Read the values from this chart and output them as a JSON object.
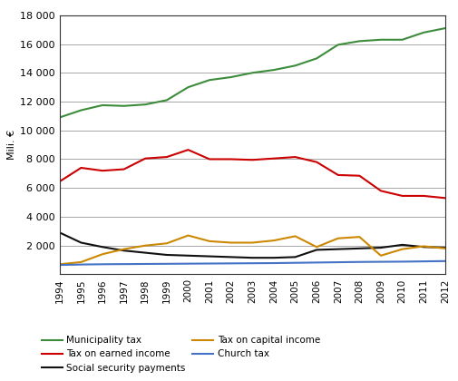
{
  "years": [
    1994,
    1995,
    1996,
    1997,
    1998,
    1999,
    2000,
    2001,
    2002,
    2003,
    2004,
    2005,
    2006,
    2007,
    2008,
    2009,
    2010,
    2011,
    2012
  ],
  "municipality_tax": [
    10900,
    11400,
    11750,
    11700,
    11800,
    12100,
    13000,
    13500,
    13700,
    14000,
    14200,
    14500,
    15000,
    15950,
    16200,
    16300,
    16300,
    16800,
    17100
  ],
  "tax_on_earned_income": [
    6450,
    7400,
    7200,
    7300,
    8050,
    8150,
    8650,
    8000,
    8000,
    7950,
    8050,
    8150,
    7800,
    6900,
    6850,
    5800,
    5450,
    5450,
    5300
  ],
  "social_security_payments": [
    2900,
    2200,
    1900,
    1650,
    1500,
    1350,
    1300,
    1250,
    1200,
    1150,
    1150,
    1200,
    1700,
    1750,
    1800,
    1850,
    2050,
    1900,
    1850
  ],
  "tax_on_capital_income": [
    700,
    850,
    1400,
    1750,
    2000,
    2150,
    2700,
    2300,
    2200,
    2200,
    2350,
    2650,
    1900,
    2500,
    2600,
    1300,
    1750,
    1950,
    1800
  ],
  "church_tax": [
    650,
    680,
    700,
    710,
    720,
    730,
    740,
    750,
    760,
    770,
    780,
    800,
    820,
    840,
    860,
    870,
    880,
    900,
    920
  ],
  "colors": {
    "municipality_tax": "#3C8C3C",
    "tax_on_earned_income": "#CC0000",
    "social_security_payments": "#111111",
    "tax_on_capital_income": "#CC8800",
    "church_tax": "#4472C4"
  },
  "legend_labels": {
    "municipality_tax": "Municipality tax",
    "tax_on_earned_income": "Tax on earned income",
    "social_security_payments": "Social security payments",
    "tax_on_capital_income": "Tax on capital income",
    "church_tax": "Church tax"
  },
  "ylabel": "Mili. €",
  "ylim": [
    0,
    18000
  ],
  "ytick_values": [
    0,
    2000,
    4000,
    6000,
    8000,
    10000,
    12000,
    14000,
    16000,
    18000
  ],
  "ytick_labels": [
    "",
    "2 000",
    "4 000",
    "6 000",
    "8 000",
    "10 000",
    "12 000",
    "14 000",
    "16 000",
    "18 000"
  ],
  "background_color": "#ffffff",
  "line_width": 1.5,
  "grid_color": "#999999",
  "spine_color": "#333333"
}
